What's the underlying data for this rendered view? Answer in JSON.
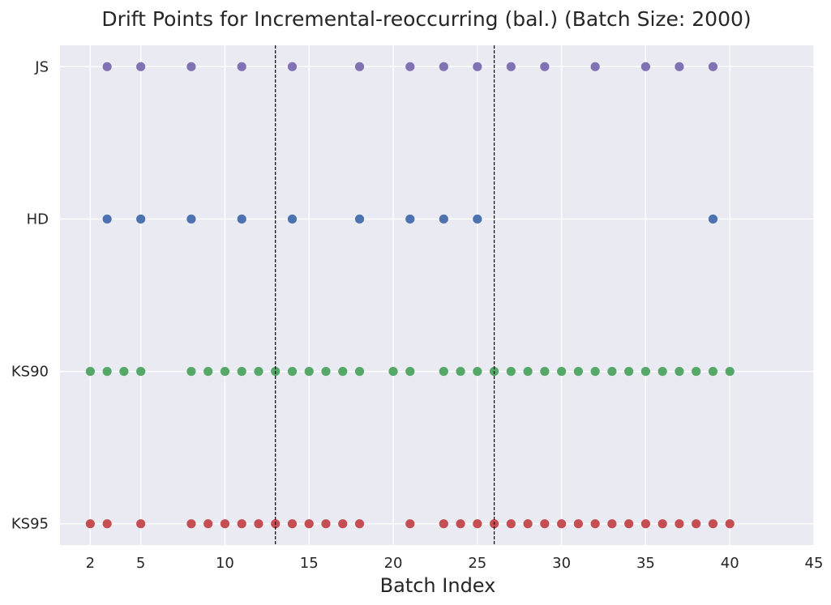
{
  "chart_data": {
    "type": "scatter",
    "title": "Drift Points for Incremental-reoccurring (bal.) (Batch Size: 2000)",
    "xlabel": "Batch Index",
    "ylabel": "",
    "xlim": [
      0.2,
      45
    ],
    "xticks": [
      2,
      5,
      10,
      15,
      20,
      25,
      30,
      35,
      40,
      45
    ],
    "xtick_labels": [
      "2",
      "5",
      "10",
      "15",
      "20",
      "25",
      "30",
      "35",
      "40",
      "45"
    ],
    "categories": [
      "KS95",
      "KS90",
      "HD",
      "JS"
    ],
    "grid": true,
    "vertical_reference_lines": [
      13,
      26
    ],
    "series": [
      {
        "name": "JS",
        "color": "#8172b3",
        "x": [
          3,
          5,
          8,
          11,
          14,
          18,
          21,
          23,
          25,
          27,
          29,
          32,
          35,
          37,
          39
        ]
      },
      {
        "name": "HD",
        "color": "#4c72b0",
        "x": [
          3,
          5,
          8,
          11,
          14,
          18,
          21,
          23,
          25,
          39
        ]
      },
      {
        "name": "KS90",
        "color": "#55a868",
        "x": [
          2,
          3,
          4,
          5,
          8,
          9,
          10,
          11,
          12,
          13,
          14,
          15,
          16,
          17,
          18,
          20,
          21,
          23,
          24,
          25,
          26,
          27,
          28,
          29,
          30,
          31,
          32,
          33,
          34,
          35,
          36,
          37,
          38,
          39,
          40
        ]
      },
      {
        "name": "KS95",
        "color": "#c44e52",
        "x": [
          2,
          3,
          5,
          8,
          9,
          10,
          11,
          12,
          13,
          14,
          15,
          16,
          17,
          18,
          21,
          23,
          24,
          25,
          26,
          27,
          28,
          29,
          30,
          31,
          32,
          33,
          34,
          35,
          36,
          37,
          38,
          39,
          40
        ]
      }
    ],
    "colors": {
      "plot_background": "#eaeaf2",
      "grid": "#ffffff",
      "reference_line": "#000000"
    }
  }
}
